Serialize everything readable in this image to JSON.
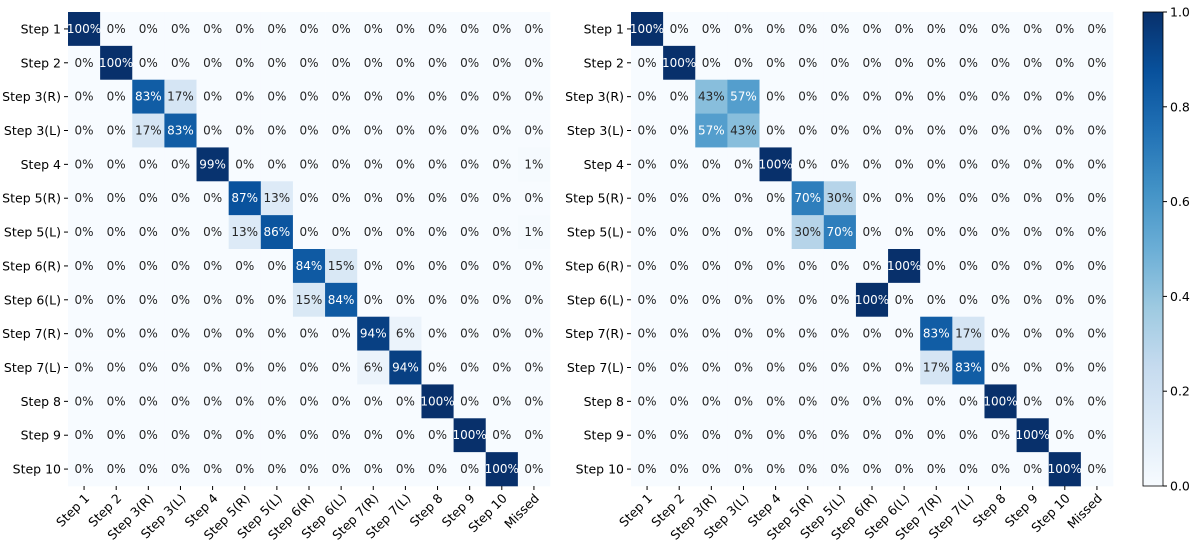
{
  "chart_data": {
    "type": "heatmap",
    "rows": [
      "Step 1",
      "Step 2",
      "Step 3(R)",
      "Step 3(L)",
      "Step 4",
      "Step 5(R)",
      "Step 5(L)",
      "Step 6(R)",
      "Step 6(L)",
      "Step 7(R)",
      "Step 7(L)",
      "Step 8",
      "Step 9",
      "Step 10"
    ],
    "columns": [
      "Step 1",
      "Step 2",
      "Step 3(R)",
      "Step 3(L)",
      "Step 4",
      "Step 5(R)",
      "Step 5(L)",
      "Step 6(R)",
      "Step 6(L)",
      "Step 7(R)",
      "Step 7(L)",
      "Step 8",
      "Step 9",
      "Step 10",
      "Missed"
    ],
    "value_format": "percent",
    "colormap": "Blues",
    "colorbar": {
      "range": [
        0.0,
        1.0
      ],
      "ticks": [
        "0.0",
        "0.2",
        "0.4",
        "0.6",
        "0.8",
        "1.0"
      ]
    },
    "panels": [
      {
        "values": [
          [
            100,
            0,
            0,
            0,
            0,
            0,
            0,
            0,
            0,
            0,
            0,
            0,
            0,
            0,
            0
          ],
          [
            0,
            100,
            0,
            0,
            0,
            0,
            0,
            0,
            0,
            0,
            0,
            0,
            0,
            0,
            0
          ],
          [
            0,
            0,
            83,
            17,
            0,
            0,
            0,
            0,
            0,
            0,
            0,
            0,
            0,
            0,
            0
          ],
          [
            0,
            0,
            17,
            83,
            0,
            0,
            0,
            0,
            0,
            0,
            0,
            0,
            0,
            0,
            0
          ],
          [
            0,
            0,
            0,
            0,
            99,
            0,
            0,
            0,
            0,
            0,
            0,
            0,
            0,
            0,
            1
          ],
          [
            0,
            0,
            0,
            0,
            0,
            87,
            13,
            0,
            0,
            0,
            0,
            0,
            0,
            0,
            0
          ],
          [
            0,
            0,
            0,
            0,
            0,
            13,
            86,
            0,
            0,
            0,
            0,
            0,
            0,
            0,
            1
          ],
          [
            0,
            0,
            0,
            0,
            0,
            0,
            0,
            84,
            15,
            0,
            0,
            0,
            0,
            0,
            0
          ],
          [
            0,
            0,
            0,
            0,
            0,
            0,
            0,
            15,
            84,
            0,
            0,
            0,
            0,
            0,
            0
          ],
          [
            0,
            0,
            0,
            0,
            0,
            0,
            0,
            0,
            0,
            94,
            6,
            0,
            0,
            0,
            0
          ],
          [
            0,
            0,
            0,
            0,
            0,
            0,
            0,
            0,
            0,
            6,
            94,
            0,
            0,
            0,
            0
          ],
          [
            0,
            0,
            0,
            0,
            0,
            0,
            0,
            0,
            0,
            0,
            0,
            100,
            0,
            0,
            0
          ],
          [
            0,
            0,
            0,
            0,
            0,
            0,
            0,
            0,
            0,
            0,
            0,
            0,
            100,
            0,
            0
          ],
          [
            0,
            0,
            0,
            0,
            0,
            0,
            0,
            0,
            0,
            0,
            0,
            0,
            0,
            100,
            0
          ]
        ]
      },
      {
        "values": [
          [
            100,
            0,
            0,
            0,
            0,
            0,
            0,
            0,
            0,
            0,
            0,
            0,
            0,
            0,
            0
          ],
          [
            0,
            100,
            0,
            0,
            0,
            0,
            0,
            0,
            0,
            0,
            0,
            0,
            0,
            0,
            0
          ],
          [
            0,
            0,
            43,
            57,
            0,
            0,
            0,
            0,
            0,
            0,
            0,
            0,
            0,
            0,
            0
          ],
          [
            0,
            0,
            57,
            43,
            0,
            0,
            0,
            0,
            0,
            0,
            0,
            0,
            0,
            0,
            0
          ],
          [
            0,
            0,
            0,
            0,
            100,
            0,
            0,
            0,
            0,
            0,
            0,
            0,
            0,
            0,
            0
          ],
          [
            0,
            0,
            0,
            0,
            0,
            70,
            30,
            0,
            0,
            0,
            0,
            0,
            0,
            0,
            0
          ],
          [
            0,
            0,
            0,
            0,
            0,
            30,
            70,
            0,
            0,
            0,
            0,
            0,
            0,
            0,
            0
          ],
          [
            0,
            0,
            0,
            0,
            0,
            0,
            0,
            0,
            100,
            0,
            0,
            0,
            0,
            0,
            0
          ],
          [
            0,
            0,
            0,
            0,
            0,
            0,
            0,
            100,
            0,
            0,
            0,
            0,
            0,
            0,
            0
          ],
          [
            0,
            0,
            0,
            0,
            0,
            0,
            0,
            0,
            0,
            83,
            17,
            0,
            0,
            0,
            0
          ],
          [
            0,
            0,
            0,
            0,
            0,
            0,
            0,
            0,
            0,
            17,
            83,
            0,
            0,
            0,
            0
          ],
          [
            0,
            0,
            0,
            0,
            0,
            0,
            0,
            0,
            0,
            0,
            0,
            100,
            0,
            0,
            0
          ],
          [
            0,
            0,
            0,
            0,
            0,
            0,
            0,
            0,
            0,
            0,
            0,
            0,
            100,
            0,
            0
          ],
          [
            0,
            0,
            0,
            0,
            0,
            0,
            0,
            0,
            0,
            0,
            0,
            0,
            0,
            100,
            0
          ]
        ]
      }
    ]
  }
}
